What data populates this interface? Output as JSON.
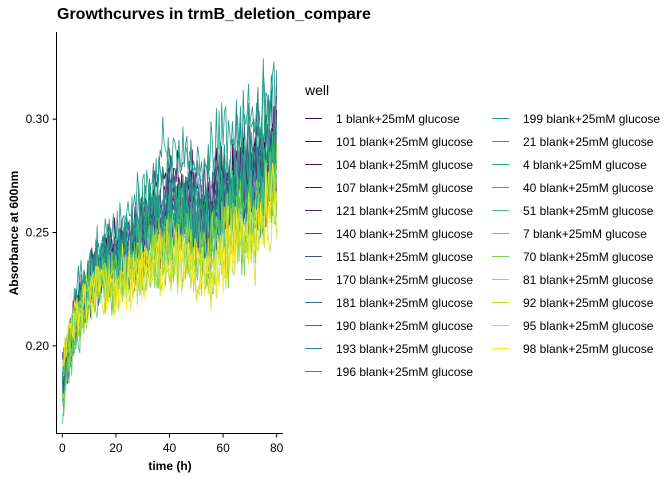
{
  "chart_data": {
    "type": "line",
    "title": "Growthcurves in trmB_deletion_compare",
    "xlabel": "time (h)",
    "ylabel": "Absorbance at 600nm",
    "xlim": [
      -2,
      82
    ],
    "ylim": [
      0.162,
      0.338
    ],
    "x_ticks": [
      0,
      20,
      40,
      60,
      80
    ],
    "y_ticks": [
      0.2,
      0.25,
      0.3
    ],
    "x_tick_labels": [
      "0",
      "20",
      "40",
      "60",
      "80"
    ],
    "y_tick_labels": [
      "0.20",
      "0.25",
      "0.30"
    ],
    "legend_title": "well",
    "legend_position": "right",
    "grid": false,
    "time_step_h": 0.5,
    "mean_trend": {
      "x": [
        0,
        5,
        10,
        15,
        20,
        25,
        30,
        35,
        40,
        45,
        50,
        55,
        60,
        65,
        70,
        75,
        80
      ],
      "y": [
        0.2,
        0.222,
        0.228,
        0.231,
        0.232,
        0.235,
        0.242,
        0.247,
        0.25,
        0.252,
        0.246,
        0.244,
        0.252,
        0.258,
        0.262,
        0.268,
        0.278
      ]
    },
    "series": [
      {
        "name": "1 blank+25mM glucose",
        "color": "#440154",
        "start": 0.185,
        "end": 0.3
      },
      {
        "name": "101 blank+25mM glucose",
        "color": "#46085C",
        "start": 0.188,
        "end": 0.295
      },
      {
        "name": "104 blank+25mM glucose",
        "color": "#471063",
        "start": 0.182,
        "end": 0.29
      },
      {
        "name": "107 blank+25mM glucose",
        "color": "#481A6C",
        "start": 0.19,
        "end": 0.295
      },
      {
        "name": "121 blank+25mM glucose",
        "color": "#482173",
        "start": 0.186,
        "end": 0.285
      },
      {
        "name": "140 blank+25mM glucose",
        "color": "#3E4A89",
        "start": 0.184,
        "end": 0.29
      },
      {
        "name": "151 blank+25mM glucose",
        "color": "#3B528B",
        "start": 0.192,
        "end": 0.288
      },
      {
        "name": "170 blank+25mM glucose",
        "color": "#355E8D",
        "start": 0.186,
        "end": 0.28
      },
      {
        "name": "181 blank+25mM glucose",
        "color": "#2F6C8E",
        "start": 0.188,
        "end": 0.282
      },
      {
        "name": "190 blank+25mM glucose",
        "color": "#2A768E",
        "start": 0.19,
        "end": 0.285
      },
      {
        "name": "193 blank+25mM glucose",
        "color": "#26828E",
        "start": 0.185,
        "end": 0.292
      },
      {
        "name": "196 blank+25mM glucose",
        "color": "#21908C",
        "start": 0.192,
        "end": 0.31
      },
      {
        "name": "199 blank+25mM glucose",
        "color": "#1F9A8A",
        "start": 0.188,
        "end": 0.318
      },
      {
        "name": "21 blank+25mM glucose",
        "color": "#20A386",
        "start": 0.183,
        "end": 0.3
      },
      {
        "name": "4 blank+25mM glucose",
        "color": "#25AB82",
        "start": 0.18,
        "end": 0.29
      },
      {
        "name": "40 blank+25mM glucose",
        "color": "#2DB27D",
        "start": 0.186,
        "end": 0.28
      },
      {
        "name": "51 blank+25mM glucose",
        "color": "#44BF70",
        "start": 0.178,
        "end": 0.275
      },
      {
        "name": "7 blank+25mM glucose",
        "color": "#5EC962",
        "start": 0.176,
        "end": 0.27
      },
      {
        "name": "70 blank+25mM glucose",
        "color": "#7AD151",
        "start": 0.182,
        "end": 0.272
      },
      {
        "name": "81 blank+25mM glucose",
        "color": "#A5DB36",
        "start": 0.19,
        "end": 0.268
      },
      {
        "name": "92 blank+25mM glucose",
        "color": "#C2DF23",
        "start": 0.192,
        "end": 0.266
      },
      {
        "name": "95 blank+25mM glucose",
        "color": "#D2E21B",
        "start": 0.194,
        "end": 0.262
      },
      {
        "name": "98 blank+25mM glucose",
        "color": "#FDE725",
        "start": 0.196,
        "end": 0.265
      }
    ]
  }
}
